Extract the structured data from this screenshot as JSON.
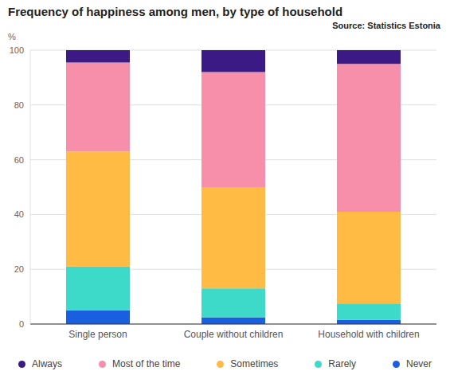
{
  "chart_data": {
    "type": "bar",
    "title": "Frequency of happiness among men, by type of household",
    "source": "Source: Statistics Estonia",
    "y_label": "%",
    "categories": [
      "Single person",
      "Couple without children",
      "Household with children"
    ],
    "series": [
      {
        "name": "Always",
        "color": "#3b1a85",
        "values": [
          4.5,
          8,
          5
        ]
      },
      {
        "name": "Most of the time",
        "color": "#f78fab",
        "values": [
          32.5,
          42,
          54
        ]
      },
      {
        "name": "Sometimes",
        "color": "#ffbb44",
        "values": [
          42,
          37,
          33.5
        ]
      },
      {
        "name": "Rarely",
        "color": "#3dd9c9",
        "values": [
          16,
          10.5,
          6
        ]
      },
      {
        "name": "Never",
        "color": "#1a5fe0",
        "values": [
          5,
          2.5,
          1.5
        ]
      }
    ],
    "ylim": [
      0,
      100
    ],
    "yticks": [
      0,
      20,
      40,
      60,
      80,
      100
    ],
    "grid": true,
    "stacked": true,
    "legend": "bottom"
  }
}
